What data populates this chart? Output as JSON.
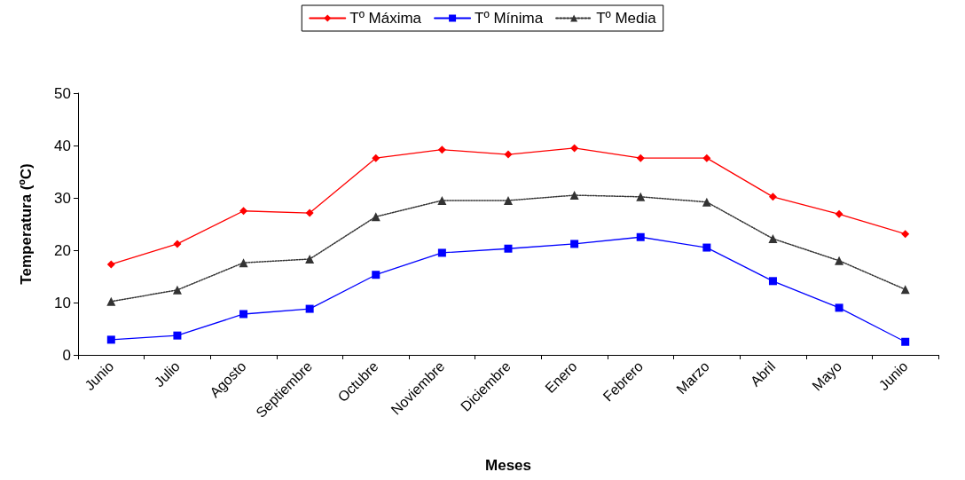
{
  "chart_data": {
    "type": "line",
    "xlabel": "Meses",
    "ylabel": "Temperatura (ºC)",
    "categories": [
      "Junio",
      "Julio",
      "Agosto",
      "Septiembre",
      "Octubre",
      "Noviembre",
      "Diciembre",
      "Enero",
      "Febrero",
      "Marzo",
      "Abril",
      "Mayo",
      "Junio"
    ],
    "series": [
      {
        "name": "Tº Máxima",
        "color": "#ff0000",
        "marker": "diamond",
        "line_style": "solid",
        "values": [
          17.3,
          21.2,
          27.5,
          27.1,
          37.6,
          39.2,
          38.3,
          39.5,
          37.6,
          37.6,
          30.2,
          26.9,
          23.1
        ]
      },
      {
        "name": "Tº Mínima",
        "color": "#0000ff",
        "marker": "square",
        "line_style": "solid",
        "values": [
          2.9,
          3.7,
          7.8,
          8.8,
          15.3,
          19.5,
          20.3,
          21.2,
          22.5,
          20.5,
          14.1,
          9.0,
          2.5
        ]
      },
      {
        "name": "Tº Media",
        "color": "#333333",
        "marker": "triangle",
        "line_style": "dotted",
        "values": [
          10.2,
          12.4,
          17.6,
          18.3,
          26.4,
          29.5,
          29.5,
          30.5,
          30.2,
          29.2,
          22.2,
          18.0,
          12.5
        ]
      }
    ],
    "ylim": [
      0,
      50
    ],
    "yticks": [
      0,
      10,
      20,
      30,
      40,
      50
    ],
    "grid": false,
    "legend": "top"
  }
}
